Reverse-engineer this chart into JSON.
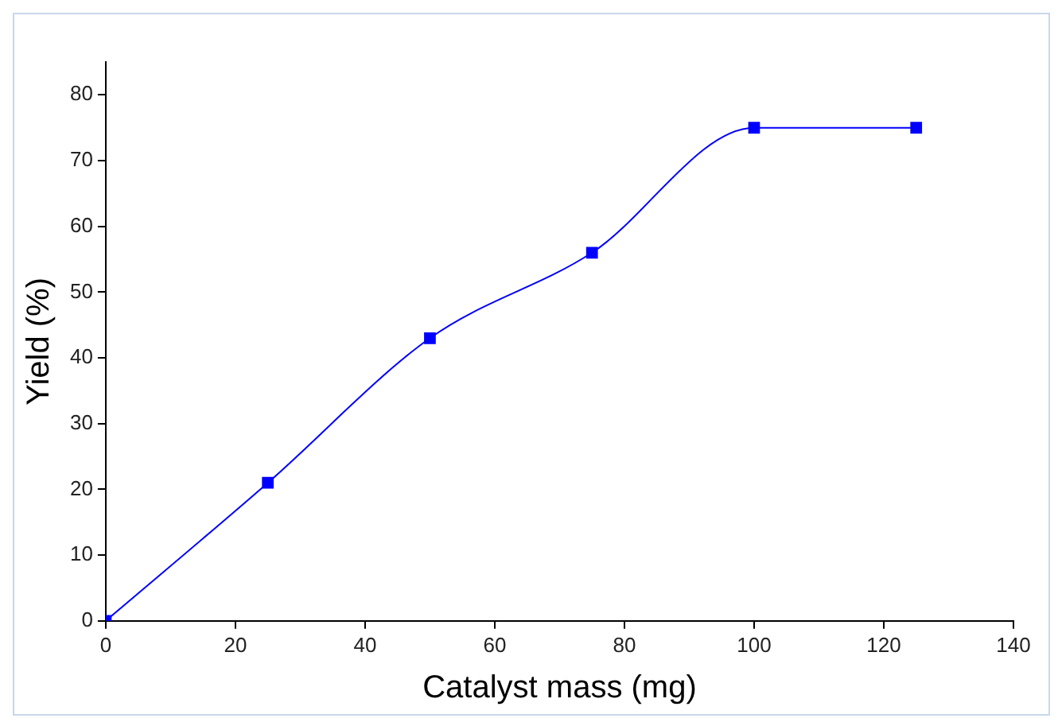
{
  "chart_data": {
    "type": "line",
    "xlabel": "Catalyst mass (mg)",
    "ylabel": "Yield (%)",
    "x": [
      0,
      25,
      50,
      75,
      100,
      125
    ],
    "series": [
      {
        "color": "#0000ff",
        "values": [
          0,
          21,
          43,
          56,
          75,
          75
        ]
      }
    ],
    "xlim": [
      0,
      140
    ],
    "xticks": [
      0,
      20,
      40,
      60,
      80,
      100,
      120,
      140
    ],
    "ylim": [
      0,
      85
    ],
    "yticks": [
      0,
      10,
      20,
      30,
      40,
      50,
      60,
      70,
      80
    ],
    "marker": "square",
    "line_style": "solid",
    "grid": false,
    "legend": false
  }
}
